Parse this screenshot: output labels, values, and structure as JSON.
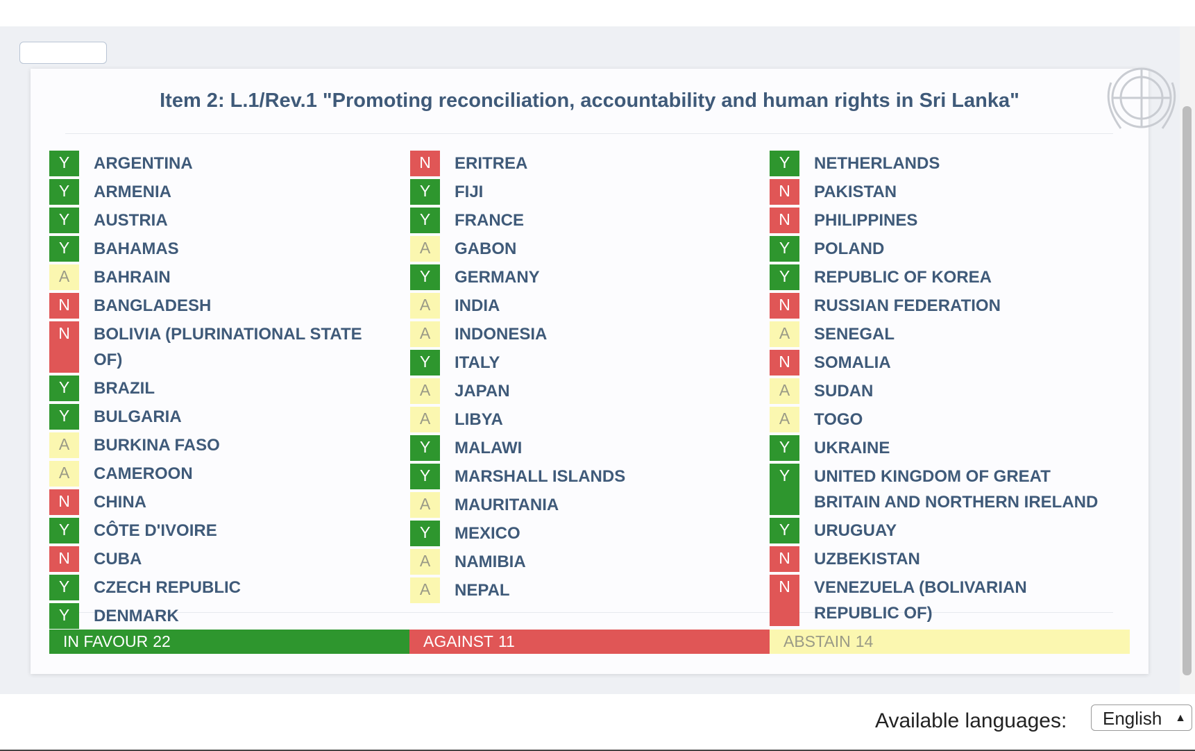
{
  "title": "Item 2: L.1/Rev.1 \"Promoting reconciliation, accountability and human rights in Sri Lanka\"",
  "columns": [
    [
      {
        "vote": "Y",
        "name": "ARGENTINA"
      },
      {
        "vote": "Y",
        "name": "ARMENIA"
      },
      {
        "vote": "Y",
        "name": "AUSTRIA"
      },
      {
        "vote": "Y",
        "name": "BAHAMAS"
      },
      {
        "vote": "A",
        "name": "BAHRAIN"
      },
      {
        "vote": "N",
        "name": "BANGLADESH"
      },
      {
        "vote": "N",
        "name": "BOLIVIA (PLURINATIONAL STATE OF)"
      },
      {
        "vote": "Y",
        "name": "BRAZIL"
      },
      {
        "vote": "Y",
        "name": "BULGARIA"
      },
      {
        "vote": "A",
        "name": "BURKINA FASO"
      },
      {
        "vote": "A",
        "name": "CAMEROON"
      },
      {
        "vote": "N",
        "name": "CHINA"
      },
      {
        "vote": "Y",
        "name": "CÔTE D'IVOIRE"
      },
      {
        "vote": "N",
        "name": "CUBA"
      },
      {
        "vote": "Y",
        "name": "CZECH REPUBLIC"
      },
      {
        "vote": "Y",
        "name": "DENMARK"
      }
    ],
    [
      {
        "vote": "N",
        "name": "ERITREA"
      },
      {
        "vote": "Y",
        "name": "FIJI"
      },
      {
        "vote": "Y",
        "name": "FRANCE"
      },
      {
        "vote": "A",
        "name": "GABON"
      },
      {
        "vote": "Y",
        "name": "GERMANY"
      },
      {
        "vote": "A",
        "name": "INDIA"
      },
      {
        "vote": "A",
        "name": "INDONESIA"
      },
      {
        "vote": "Y",
        "name": "ITALY"
      },
      {
        "vote": "A",
        "name": "JAPAN"
      },
      {
        "vote": "A",
        "name": "LIBYA"
      },
      {
        "vote": "Y",
        "name": "MALAWI"
      },
      {
        "vote": "Y",
        "name": "MARSHALL ISLANDS"
      },
      {
        "vote": "A",
        "name": "MAURITANIA"
      },
      {
        "vote": "Y",
        "name": "MEXICO"
      },
      {
        "vote": "A",
        "name": "NAMIBIA"
      },
      {
        "vote": "A",
        "name": "NEPAL"
      }
    ],
    [
      {
        "vote": "Y",
        "name": "NETHERLANDS"
      },
      {
        "vote": "N",
        "name": "PAKISTAN"
      },
      {
        "vote": "N",
        "name": "PHILIPPINES"
      },
      {
        "vote": "Y",
        "name": "POLAND"
      },
      {
        "vote": "Y",
        "name": "REPUBLIC OF KOREA"
      },
      {
        "vote": "N",
        "name": "RUSSIAN FEDERATION"
      },
      {
        "vote": "A",
        "name": "SENEGAL"
      },
      {
        "vote": "N",
        "name": "SOMALIA"
      },
      {
        "vote": "A",
        "name": "SUDAN"
      },
      {
        "vote": "A",
        "name": "TOGO"
      },
      {
        "vote": "Y",
        "name": "UKRAINE"
      },
      {
        "vote": "Y",
        "name": "UNITED KINGDOM OF GREAT BRITAIN AND NORTHERN IRELAND"
      },
      {
        "vote": "Y",
        "name": "URUGUAY"
      },
      {
        "vote": "N",
        "name": "UZBEKISTAN"
      },
      {
        "vote": "N",
        "name": "VENEZUELA (BOLIVARIAN REPUBLIC OF)"
      }
    ]
  ],
  "totals": [
    {
      "label": "IN FAVOUR",
      "count": 22
    },
    {
      "label": "AGAINST",
      "count": 11
    },
    {
      "label": "ABSTAIN",
      "count": 14
    }
  ],
  "languages_label": "Available languages:",
  "language": "English"
}
